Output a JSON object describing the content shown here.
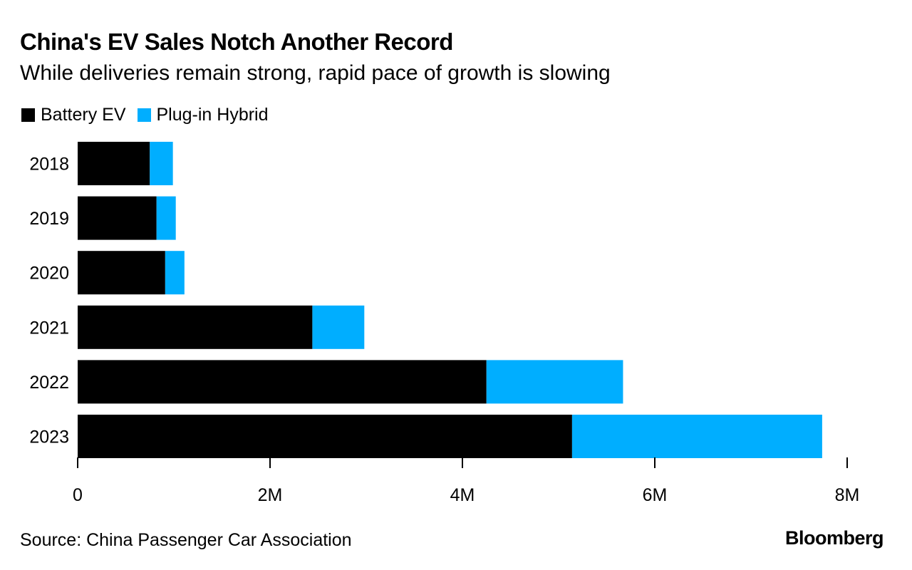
{
  "title": "China's EV Sales Notch Another Record",
  "subtitle": "While deliveries remain strong, rapid pace of growth is slowing",
  "source": "Source: China Passenger Car Association",
  "logo": "Bloomberg",
  "colors": {
    "battery": "#000000",
    "hybrid": "#00aeff",
    "axis": "#000000"
  },
  "chart_data": {
    "type": "bar",
    "orientation": "horizontal",
    "stacked": true,
    "categories": [
      "2018",
      "2019",
      "2020",
      "2021",
      "2022",
      "2023"
    ],
    "series": [
      {
        "name": "Battery EV",
        "values": [
          750000,
          820000,
          910000,
          2440000,
          4250000,
          5140000
        ]
      },
      {
        "name": "Plug-in Hybrid",
        "values": [
          240000,
          200000,
          200000,
          540000,
          1420000,
          2600000
        ]
      }
    ],
    "xlim": [
      0,
      8000000
    ],
    "xticks": [
      {
        "value": 0,
        "label": "0"
      },
      {
        "value": 2000000,
        "label": "2M"
      },
      {
        "value": 4000000,
        "label": "4M"
      },
      {
        "value": 6000000,
        "label": "6M"
      },
      {
        "value": 8000000,
        "label": "8M"
      }
    ],
    "legend_position": "top-left",
    "grid": false
  }
}
